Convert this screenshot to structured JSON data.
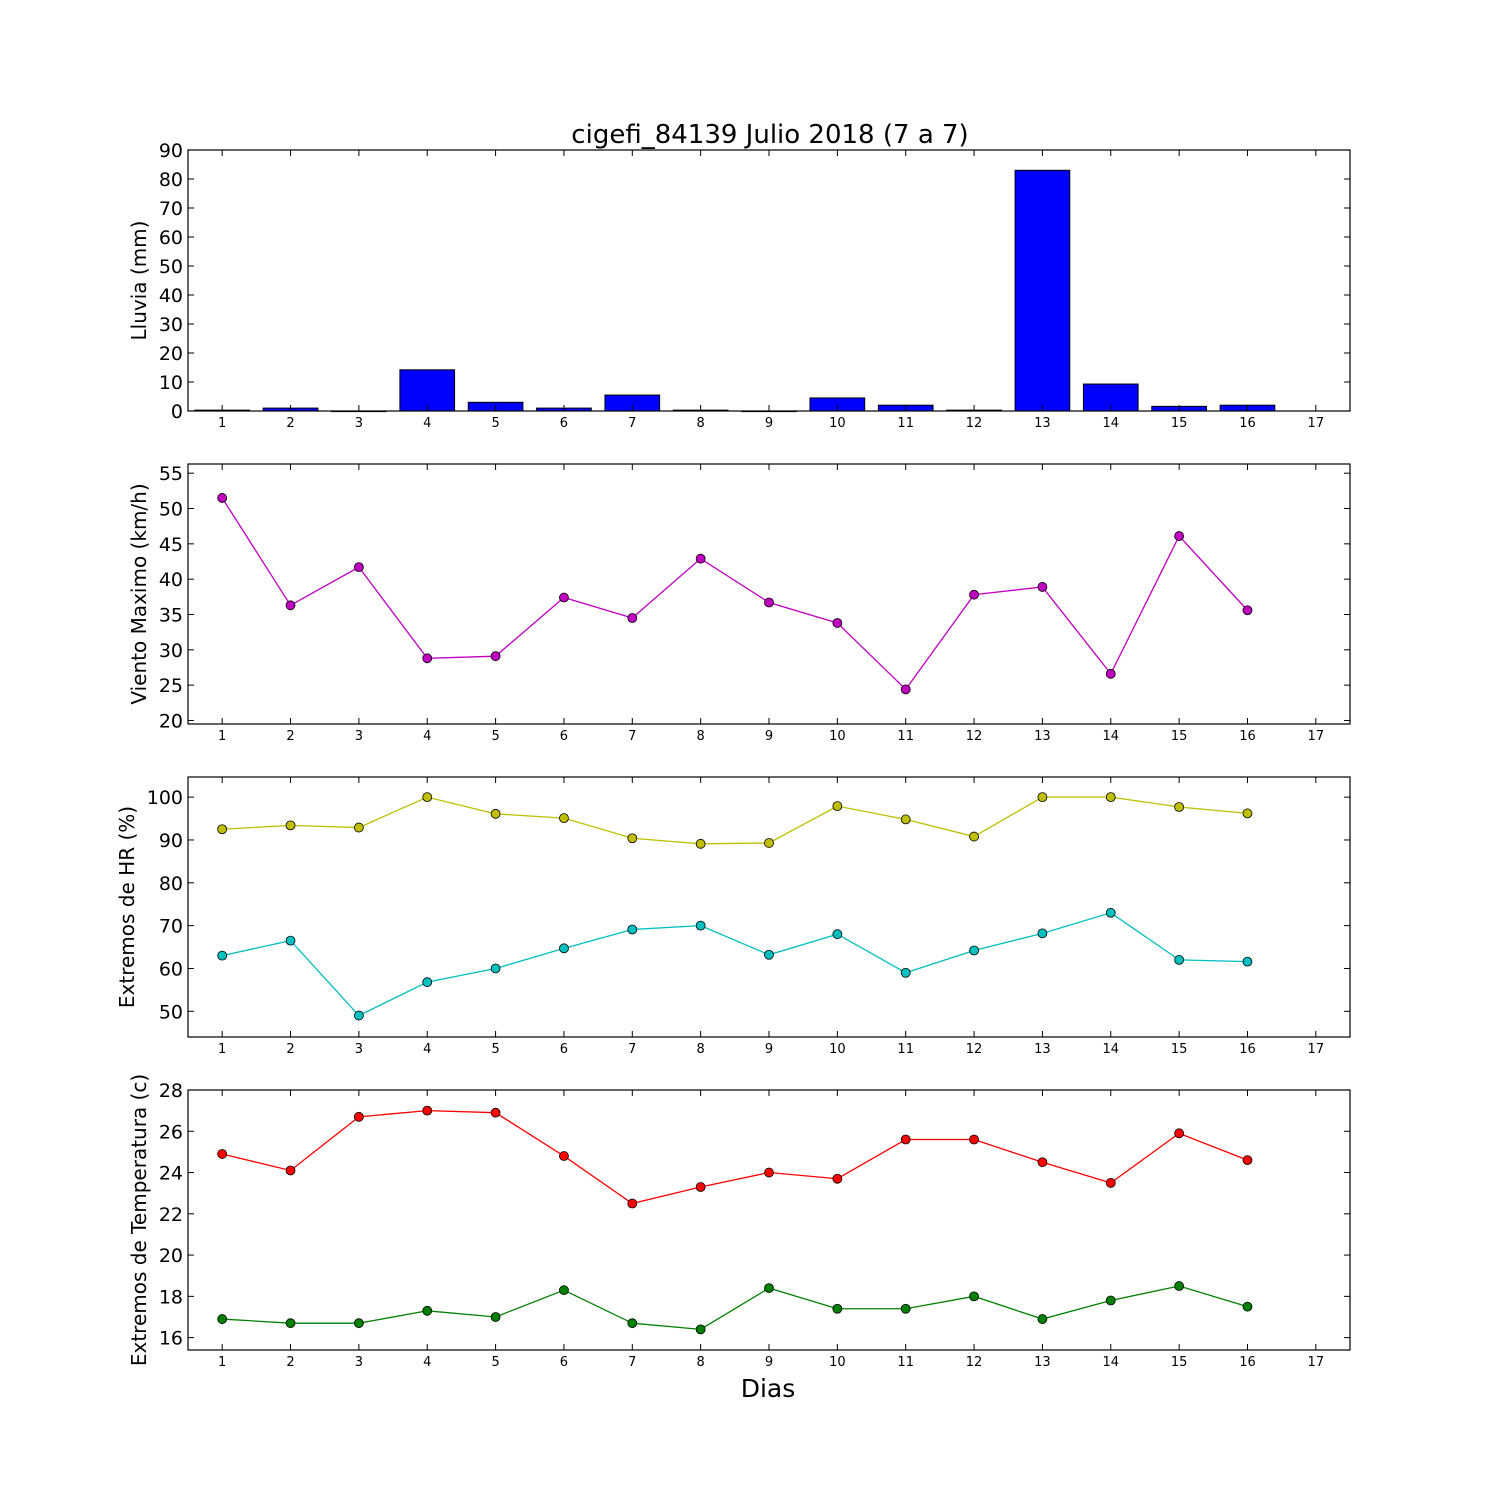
{
  "figure": {
    "title": "cigefi_84139 Julio 2018  (7 a 7)",
    "xlabel": "Dias"
  },
  "chart_data": [
    {
      "type": "bar",
      "ylabel": "Lluvia (mm)",
      "xlim": [
        0.5,
        17.5
      ],
      "ylim": [
        0,
        90
      ],
      "yticks": [
        0,
        10,
        20,
        30,
        40,
        50,
        60,
        70,
        80,
        90
      ],
      "xticks": [
        1,
        2,
        3,
        4,
        5,
        6,
        7,
        8,
        9,
        10,
        11,
        12,
        13,
        14,
        15,
        16,
        17
      ],
      "categories": [
        1,
        2,
        3,
        4,
        5,
        6,
        7,
        8,
        9,
        10,
        11,
        12,
        13,
        14,
        15,
        16
      ],
      "values": [
        0.3,
        1.0,
        0,
        14.2,
        3.0,
        1.0,
        5.5,
        0.3,
        0,
        4.5,
        2.0,
        0.3,
        83.0,
        9.3,
        1.6,
        2.0
      ],
      "series": [
        {
          "color": "#0000ff"
        }
      ]
    },
    {
      "type": "line",
      "ylabel": "Viento Maximo (km/h)",
      "xlim": [
        0.5,
        17.5
      ],
      "ylim": [
        19.5,
        56.3
      ],
      "yticks": [
        20,
        25,
        30,
        35,
        40,
        45,
        50,
        55
      ],
      "xticks": [
        1,
        2,
        3,
        4,
        5,
        6,
        7,
        8,
        9,
        10,
        11,
        12,
        13,
        14,
        15,
        16,
        17
      ],
      "x": [
        1,
        2,
        3,
        4,
        5,
        6,
        7,
        8,
        9,
        10,
        11,
        12,
        13,
        14,
        15,
        16
      ],
      "series": [
        {
          "color": "#bf00bf",
          "values": [
            51.5,
            36.3,
            41.7,
            28.8,
            29.1,
            37.4,
            34.5,
            42.9,
            36.7,
            33.8,
            24.4,
            37.8,
            38.9,
            26.6,
            46.1,
            35.6
          ]
        }
      ]
    },
    {
      "type": "line",
      "ylabel": "Extremos de HR (%)",
      "xlim": [
        0.5,
        17.5
      ],
      "ylim": [
        44,
        104.7
      ],
      "yticks": [
        50,
        60,
        70,
        80,
        90,
        100
      ],
      "xticks": [
        1,
        2,
        3,
        4,
        5,
        6,
        7,
        8,
        9,
        10,
        11,
        12,
        13,
        14,
        15,
        16,
        17
      ],
      "x": [
        1,
        2,
        3,
        4,
        5,
        6,
        7,
        8,
        9,
        10,
        11,
        12,
        13,
        14,
        15,
        16
      ],
      "series": [
        {
          "color": "#bfbf00",
          "values": [
            92.5,
            93.4,
            92.9,
            100,
            96.1,
            95.1,
            90.4,
            89.1,
            89.3,
            97.9,
            94.8,
            90.8,
            100,
            100,
            97.7,
            96.2
          ]
        },
        {
          "color": "#00bfbf",
          "values": [
            63.0,
            66.5,
            49.0,
            56.8,
            60.0,
            64.7,
            69.1,
            70.0,
            63.2,
            68.0,
            59.0,
            64.2,
            68.2,
            73.0,
            62.0,
            61.6
          ]
        }
      ]
    },
    {
      "type": "line",
      "ylabel": "Extremos de Temperatura (c)",
      "xlim": [
        0.5,
        17.5
      ],
      "ylim": [
        15.4,
        28
      ],
      "yticks": [
        16,
        18,
        20,
        22,
        24,
        26,
        28
      ],
      "xticks": [
        1,
        2,
        3,
        4,
        5,
        6,
        7,
        8,
        9,
        10,
        11,
        12,
        13,
        14,
        15,
        16,
        17
      ],
      "x": [
        1,
        2,
        3,
        4,
        5,
        6,
        7,
        8,
        9,
        10,
        11,
        12,
        13,
        14,
        15,
        16
      ],
      "series": [
        {
          "color": "#ff0000",
          "values": [
            24.9,
            24.1,
            26.7,
            27.0,
            26.9,
            24.8,
            22.5,
            23.3,
            24.0,
            23.7,
            25.6,
            25.6,
            24.5,
            23.5,
            25.9,
            24.6
          ]
        },
        {
          "color": "#008000",
          "values": [
            16.9,
            16.7,
            16.7,
            17.3,
            17.0,
            18.3,
            16.7,
            16.4,
            18.4,
            17.4,
            17.4,
            18.0,
            16.9,
            17.8,
            18.5,
            17.5
          ]
        }
      ]
    }
  ]
}
